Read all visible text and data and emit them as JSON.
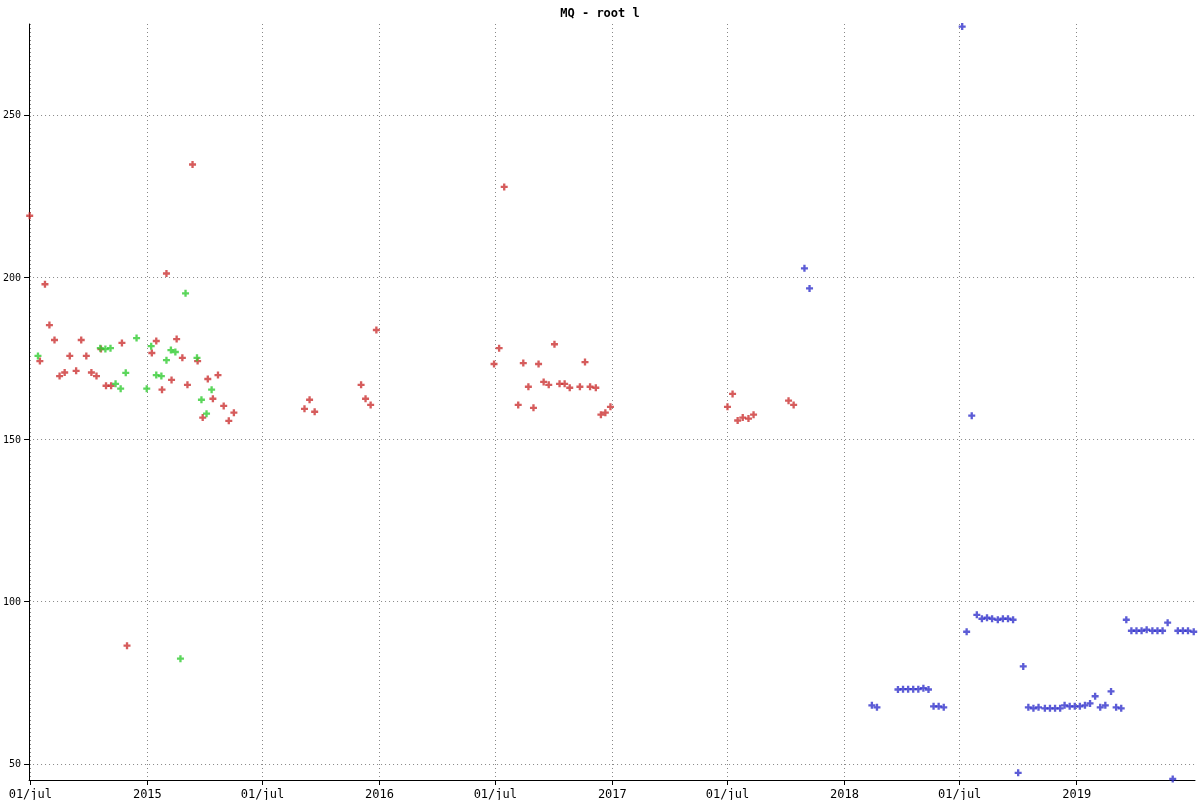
{
  "chart_data": {
    "type": "scatter",
    "title": "MQ - root l",
    "xlim": [
      "2014-06-29",
      "2019-07-06"
    ],
    "xticks": [
      {
        "value": "2014-07-01",
        "label": "01/jul"
      },
      {
        "value": "2015-01-01",
        "label": "2015"
      },
      {
        "value": "2015-07-01",
        "label": "01/jul"
      },
      {
        "value": "2016-01-01",
        "label": "2016"
      },
      {
        "value": "2016-07-01",
        "label": "01/jul"
      },
      {
        "value": "2017-01-01",
        "label": "2017"
      },
      {
        "value": "2017-07-01",
        "label": "01/jul"
      },
      {
        "value": "2018-01-01",
        "label": "2018"
      },
      {
        "value": "2018-07-01",
        "label": "01/jul"
      },
      {
        "value": "2019-01-01",
        "label": "2019"
      }
    ],
    "ylim": [
      45,
      278
    ],
    "yticks": [
      50,
      100,
      150,
      200,
      250
    ],
    "grid": true,
    "marker": "cross",
    "series": [
      {
        "color": "#cc3333",
        "x": [
          "2014-06-30",
          "2014-07-16",
          "2014-07-24",
          "2014-07-31",
          "2014-08-08",
          "2014-08-16",
          "2014-08-24",
          "2014-09-01",
          "2014-09-11",
          "2014-09-19",
          "2014-09-27",
          "2014-10-05",
          "2014-10-13",
          "2014-10-20",
          "2014-10-28",
          "2014-11-05",
          "2014-11-22",
          "2014-11-30",
          "2015-01-08",
          "2015-01-15",
          "2015-01-31",
          "2015-01-24",
          "2015-02-08",
          "2015-02-16",
          "2015-02-25",
          "2015-03-05",
          "2015-03-13",
          "2015-03-21",
          "2015-03-29",
          "2015-04-06",
          "2015-04-14",
          "2015-04-22",
          "2015-05-01",
          "2015-05-09",
          "2015-05-17",
          "2015-09-05",
          "2015-09-13",
          "2015-09-21",
          "2015-12-03",
          "2015-12-10",
          "2015-12-18",
          "2015-12-27",
          "2016-06-29",
          "2016-07-07",
          "2016-07-15",
          "2016-08-06",
          "2016-08-14",
          "2016-08-22",
          "2016-08-30",
          "2016-09-07",
          "2016-09-15",
          "2016-09-23",
          "2016-10-02",
          "2016-10-10",
          "2016-10-18",
          "2016-10-26",
          "2016-11-11",
          "2016-11-19",
          "2016-11-27",
          "2016-12-06",
          "2016-12-14",
          "2016-12-21",
          "2016-12-29",
          "2017-07-01",
          "2017-07-09",
          "2017-07-17",
          "2017-07-25",
          "2017-08-03",
          "2017-08-11",
          "2017-10-05",
          "2017-10-13"
        ],
        "values": [
          218.9,
          174.1,
          197.8,
          185.2,
          180.6,
          169.5,
          170.6,
          175.7,
          171.1,
          180.6,
          175.7,
          170.6,
          169.5,
          177.8,
          166.5,
          166.5,
          179.7,
          86.4,
          176.6,
          180.3,
          201.1,
          165.3,
          168.3,
          180.9,
          175.1,
          166.8,
          234.7,
          174.1,
          156.7,
          168.6,
          162.5,
          169.8,
          160.3,
          155.7,
          158.2,
          159.4,
          162.2,
          158.5,
          166.8,
          162.5,
          160.6,
          183.7,
          173.2,
          178.1,
          227.8,
          160.6,
          173.5,
          166.2,
          159.7,
          173.2,
          167.7,
          166.8,
          179.3,
          167.1,
          167.1,
          165.9,
          166.2,
          173.8,
          166.2,
          165.9,
          157.6,
          158.2,
          160.0,
          160.0,
          164.0,
          155.8,
          156.7,
          156.4,
          157.6,
          161.9,
          160.6
        ]
      },
      {
        "color": "#33cc33",
        "x": [
          "2014-07-13",
          "2014-10-19",
          "2014-10-27",
          "2014-11-04",
          "2014-11-12",
          "2014-11-20",
          "2014-11-28",
          "2014-12-15",
          "2014-12-31",
          "2015-01-07",
          "2015-01-15",
          "2015-01-23",
          "2015-01-31",
          "2015-02-07",
          "2015-02-14",
          "2015-02-22",
          "2015-03-02",
          "2015-03-20",
          "2015-03-27",
          "2015-04-04",
          "2015-04-12"
        ],
        "values": [
          175.7,
          178.1,
          177.8,
          178.1,
          167.1,
          165.6,
          170.5,
          181.2,
          165.6,
          178.7,
          169.8,
          169.5,
          174.4,
          177.5,
          176.9,
          82.4,
          195.0,
          175.1,
          162.2,
          157.9,
          165.3
        ]
      },
      {
        "color": "#3333cc",
        "x": [
          "2017-10-30",
          "2017-11-07",
          "2018-02-13",
          "2018-02-21",
          "2018-03-26",
          "2018-04-03",
          "2018-04-11",
          "2018-04-19",
          "2018-04-27",
          "2018-05-05",
          "2018-05-13",
          "2018-05-21",
          "2018-05-29",
          "2018-06-06",
          "2018-07-05",
          "2018-07-12",
          "2018-07-20",
          "2018-07-28",
          "2018-08-05",
          "2018-08-13",
          "2018-08-21",
          "2018-08-30",
          "2018-09-07",
          "2018-09-15",
          "2018-09-23",
          "2018-10-01",
          "2018-10-09",
          "2018-10-17",
          "2018-10-25",
          "2018-11-02",
          "2018-11-12",
          "2018-11-20",
          "2018-11-28",
          "2018-12-06",
          "2018-12-13",
          "2018-12-21",
          "2018-12-29",
          "2019-01-06",
          "2019-01-14",
          "2019-01-22",
          "2019-01-30",
          "2019-02-07",
          "2019-02-15",
          "2019-02-24",
          "2019-03-04",
          "2019-03-12",
          "2019-03-20",
          "2019-03-28",
          "2019-04-05",
          "2019-04-13",
          "2019-04-21",
          "2019-04-30",
          "2019-05-08",
          "2019-05-16",
          "2019-05-24",
          "2019-06-01",
          "2019-06-09",
          "2019-06-17",
          "2019-06-25",
          "2019-07-04"
        ],
        "values": [
          202.7,
          196.5,
          68.0,
          67.4,
          72.9,
          73.0,
          73.0,
          73.0,
          73.0,
          73.3,
          72.9,
          67.7,
          67.7,
          67.4,
          277.2,
          90.7,
          157.3,
          95.9,
          94.7,
          95.0,
          94.7,
          94.4,
          94.7,
          94.7,
          94.4,
          47.2,
          80.0,
          67.4,
          67.1,
          67.4,
          67.1,
          67.1,
          67.1,
          67.1,
          68.0,
          67.7,
          67.7,
          67.7,
          68.0,
          68.6,
          70.8,
          67.4,
          68.0,
          72.3,
          67.4,
          67.1,
          94.4,
          91.0,
          91.0,
          91.0,
          91.3,
          91.0,
          91.0,
          91.0,
          93.5,
          45.3,
          91.0,
          91.0,
          91.0,
          90.7
        ]
      }
    ]
  }
}
